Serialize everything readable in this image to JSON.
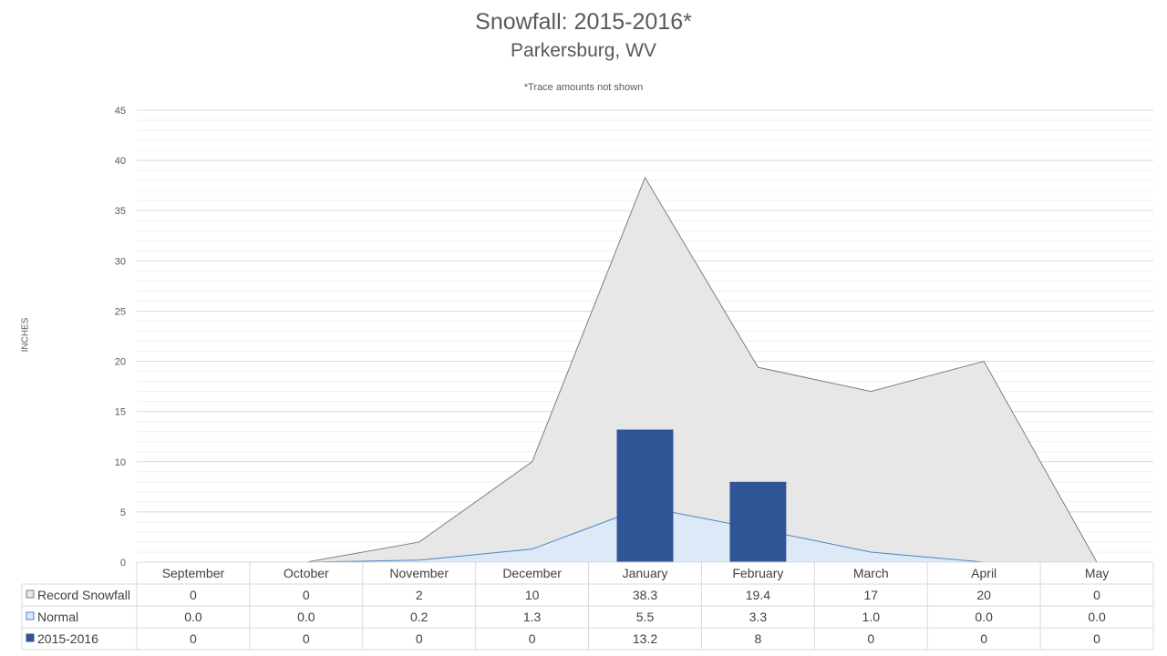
{
  "chart_data": {
    "type": "bar",
    "title": "Snowfall: 2015-2016*",
    "subtitle": "Parkersburg, WV",
    "note": "*Trace amounts not shown",
    "ylabel": "INCHES",
    "ylim": [
      0,
      45
    ],
    "yticks": [
      0,
      5,
      10,
      15,
      20,
      25,
      30,
      35,
      40,
      45
    ],
    "categories": [
      "September",
      "October",
      "November",
      "December",
      "January",
      "February",
      "March",
      "April",
      "May"
    ],
    "grid": true,
    "series": [
      {
        "name": "Record Snowfall",
        "type": "area",
        "color": "#e7e7e7",
        "stroke": "#7f7f7f",
        "values": [
          0,
          0,
          2,
          10,
          38.3,
          19.4,
          17,
          20,
          0
        ],
        "labels": [
          "0",
          "0",
          "2",
          "10",
          "38.3",
          "19.4",
          "17",
          "20",
          "0"
        ]
      },
      {
        "name": "Normal",
        "type": "area",
        "color": "#dde9f6",
        "stroke": "#4a86c5",
        "values": [
          0.0,
          0.0,
          0.2,
          1.3,
          5.5,
          3.3,
          1.0,
          0.0,
          0.0
        ],
        "labels": [
          "0.0",
          "0.0",
          "0.2",
          "1.3",
          "5.5",
          "3.3",
          "1.0",
          "0.0",
          "0.0"
        ]
      },
      {
        "name": "2015-2016",
        "type": "bar",
        "color": "#2f5597",
        "values": [
          0,
          0,
          0,
          0,
          13.2,
          8,
          0,
          0,
          0
        ],
        "labels": [
          "0",
          "0",
          "0",
          "0",
          "13.2",
          "8",
          "0",
          "0",
          "0"
        ]
      }
    ]
  }
}
